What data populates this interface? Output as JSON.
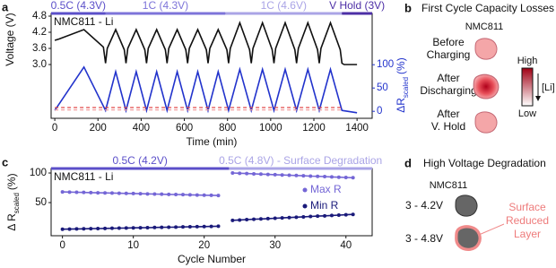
{
  "chart_data": [
    {
      "type": "line",
      "panel": "a",
      "annotation": "NMC811 - Li",
      "xlabel": "Time (min)",
      "ylabel": "Voltage (V)",
      "y2label": {
        "main": "ΔR",
        "sub": "scaled",
        "unit": "(%)"
      },
      "xlim": [
        -17,
        1470
      ],
      "xticks": [
        0,
        200,
        400,
        600,
        800,
        1000,
        1200,
        1400
      ],
      "ylim": [
        1.0,
        4.9
      ],
      "yticks": [
        {
          "value": 3,
          "label": "3.0"
        },
        3.6,
        4.2,
        {
          "value": 4.8,
          "label": "4.8"
        }
      ],
      "y2lim": [
        -15,
        210
      ],
      "y2ticks": [
        0,
        50,
        100
      ],
      "y2color": "#2233cc",
      "grid": false,
      "phases": [
        {
          "label": "0.5C (4.3V)",
          "start": -17,
          "end": 235,
          "color": "#5b4fc9"
        },
        {
          "label": "1C (4.3V)",
          "start": 235,
          "end": 790,
          "color": "#7d74d9"
        },
        {
          "label": "1C (4.6V)",
          "start": 790,
          "end": 1330,
          "color": "#aaa4e6"
        },
        {
          "label": "V Hold (3V)",
          "start": 1330,
          "end": 1470,
          "color": "#4d2fa6"
        }
      ],
      "series": [
        {
          "color": "#111111",
          "axis": "y",
          "x": [
            0,
            20,
            135,
            225,
            235,
            243,
            282,
            322,
            330,
            338,
            377,
            417,
            425,
            433,
            472,
            512,
            520,
            528,
            567,
            607,
            615,
            623,
            662,
            702,
            710,
            718,
            757,
            797,
            805,
            813,
            857,
            902,
            910,
            918,
            962,
            1007,
            1015,
            1023,
            1067,
            1112,
            1120,
            1128,
            1172,
            1217,
            1225,
            1233,
            1277,
            1322,
            1330,
            1340,
            1400
          ],
          "values": [
            3.9,
            3.95,
            4.3,
            3.65,
            3.05,
            3.6,
            4.3,
            3.55,
            3.05,
            3.6,
            4.3,
            3.55,
            3.05,
            3.6,
            4.3,
            3.55,
            3.05,
            3.6,
            4.3,
            3.55,
            3.05,
            3.6,
            4.3,
            3.55,
            3.05,
            3.6,
            4.3,
            3.55,
            3.05,
            3.6,
            4.55,
            3.55,
            3.05,
            3.6,
            4.55,
            3.55,
            3.05,
            3.6,
            4.55,
            3.55,
            3.05,
            3.6,
            4.55,
            3.55,
            3.05,
            3.6,
            4.55,
            3.55,
            3.05,
            3.0,
            3.0
          ]
        },
        {
          "color": "#2233cc",
          "axis": "y2",
          "x": [
            0,
            135,
            235,
            282,
            330,
            377,
            425,
            472,
            520,
            567,
            615,
            662,
            710,
            757,
            805,
            857,
            910,
            962,
            1015,
            1067,
            1120,
            1172,
            1225,
            1277,
            1330,
            1400
          ],
          "values": [
            2,
            95,
            2,
            85,
            2,
            85,
            2,
            85,
            2,
            85,
            2,
            85,
            2,
            85,
            2,
            90,
            2,
            90,
            2,
            90,
            2,
            90,
            2,
            90,
            2,
            -3
          ]
        },
        {
          "color": "#e04848",
          "axis": "y2",
          "dash": true,
          "x": [
            0,
            1330
          ],
          "values": [
            8,
            8
          ]
        },
        {
          "color": "#f3a0a0",
          "axis": "y2",
          "dash": true,
          "x": [
            0,
            1330
          ],
          "values": [
            3,
            3
          ]
        }
      ]
    },
    {
      "type": "line",
      "panel": "c",
      "annotation": "NMC811 - Li",
      "xlabel": "Cycle Number",
      "ylabel": {
        "main": "Δ R",
        "sub": "scaled",
        "unit": "(%)"
      },
      "xlim": [
        -1.6,
        43.7
      ],
      "xticks": [
        0,
        10,
        20,
        30,
        40
      ],
      "ylim": [
        -6,
        107.6
      ],
      "yticks": [
        50,
        100
      ],
      "grid": false,
      "legend": "right",
      "phases": [
        {
          "label": "0.5C (4.2V)",
          "start": -1.6,
          "end": 23.5,
          "color": "#5b4fc9"
        },
        {
          "label": "0.5C (4.8V) - Surface Degradation",
          "start": 23.5,
          "end": 43.7,
          "color": "#aaa4e6"
        }
      ],
      "series": [
        {
          "name": "Max R",
          "color": "#7466d6",
          "marker": true,
          "x": [
            0,
            1,
            2,
            3,
            4,
            5,
            6,
            7,
            8,
            9,
            10,
            11,
            12,
            13,
            14,
            15,
            16,
            17,
            18,
            19,
            20,
            21,
            22,
            23,
            24,
            25,
            26,
            27,
            28,
            29,
            30,
            31,
            32,
            33,
            34,
            35,
            36,
            37,
            38,
            39,
            40,
            41
          ],
          "values": [
            68,
            67.7,
            67.5,
            67.2,
            66.9,
            66.6,
            66.4,
            66.1,
            65.8,
            65.5,
            65.3,
            65,
            64.7,
            64.5,
            64.2,
            63.9,
            63.6,
            63.4,
            63.1,
            62.8,
            62.5,
            62.3,
            62,
            null,
            100,
            99.5,
            99.1,
            98.6,
            98.1,
            97.6,
            97.2,
            96.7,
            96.2,
            95.8,
            95.3,
            94.8,
            94.4,
            93.9,
            93.4,
            92.9,
            92.5,
            92
          ]
        },
        {
          "name": "Min R",
          "color": "#1a1a7a",
          "marker": true,
          "x": [
            0,
            1,
            2,
            3,
            4,
            5,
            6,
            7,
            8,
            9,
            10,
            11,
            12,
            13,
            14,
            15,
            16,
            17,
            18,
            19,
            20,
            21,
            22,
            23,
            24,
            25,
            26,
            27,
            28,
            29,
            30,
            31,
            32,
            33,
            34,
            35,
            36,
            37,
            38,
            39,
            40,
            41
          ],
          "values": [
            5,
            5.2,
            5.5,
            5.7,
            5.9,
            6.1,
            6.4,
            6.6,
            6.8,
            7,
            7.3,
            7.5,
            7.7,
            8,
            8.2,
            8.4,
            8.6,
            8.9,
            9.1,
            9.3,
            9.5,
            9.8,
            10,
            null,
            20,
            20.6,
            21.2,
            21.8,
            22.4,
            22.9,
            23.5,
            24.1,
            24.7,
            25.3,
            25.9,
            26.5,
            27.1,
            27.6,
            28.2,
            28.8,
            29.4,
            30
          ]
        }
      ]
    }
  ],
  "diagram_b": {
    "panel": "b",
    "title": "First Cycle Capacity Losses",
    "material": "NMC811",
    "states": [
      [
        "Before",
        "Charging"
      ],
      [
        "After",
        "Discharging"
      ],
      [
        "After",
        "V. Hold"
      ]
    ],
    "scale": {
      "high": "High",
      "low": "Low",
      "axis": "[Li]"
    }
  },
  "diagram_d": {
    "panel": "d",
    "title": "High Voltage Degradation",
    "material": "NMC811",
    "states": [
      "3 - 4.2V",
      "3 - 4.8V"
    ],
    "layer": [
      "Surface",
      "Reduced",
      "Layer"
    ]
  }
}
